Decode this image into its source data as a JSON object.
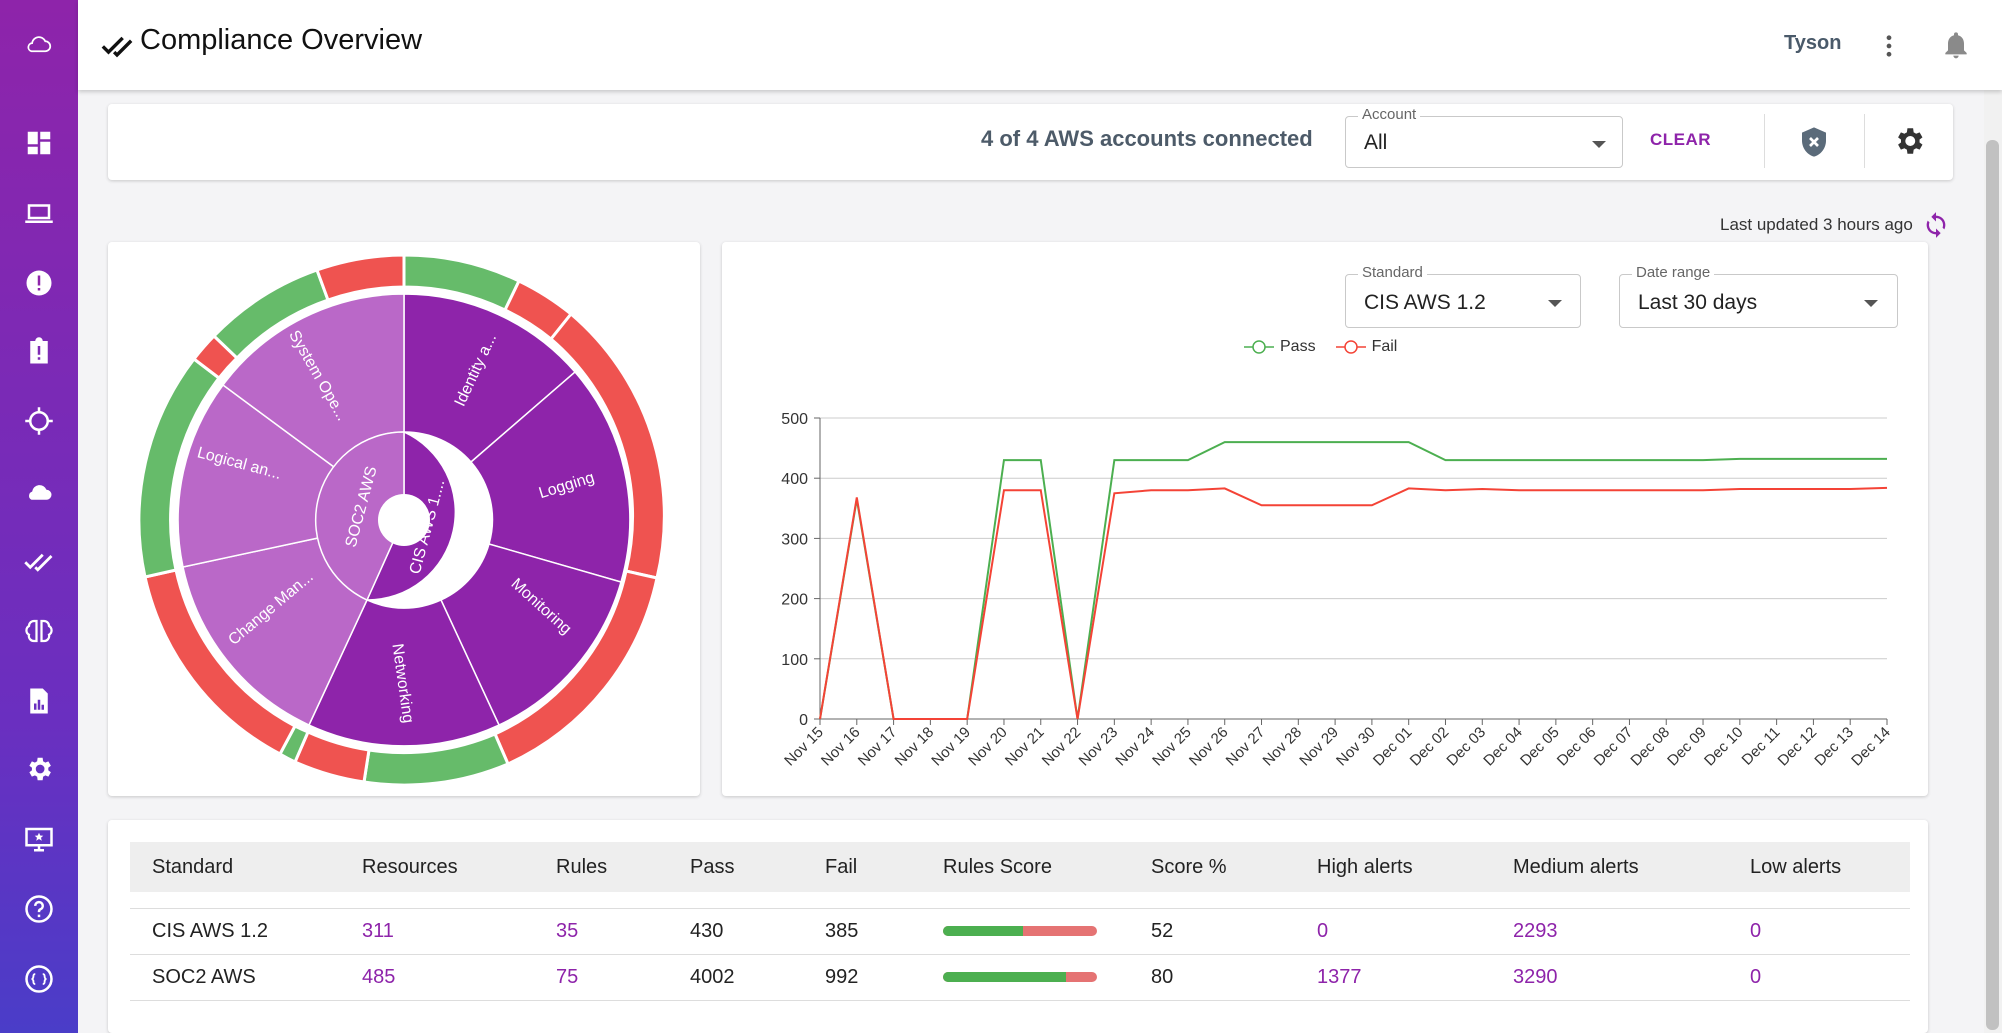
{
  "header": {
    "title": "Compliance Overview",
    "user": "Tyson"
  },
  "sidebar": {
    "icons": [
      "cloud-logo-icon",
      "dashboard-icon",
      "laptop-icon",
      "alert-icon",
      "clipboard-alert-icon",
      "crosshair-icon",
      "cloud-icon",
      "compliance-check-icon",
      "brain-icon",
      "report-icon",
      "settings-icon",
      "monitor-icon",
      "help-icon",
      "api-icon"
    ]
  },
  "accounts": {
    "connected_text": "4 of 4 AWS accounts connected",
    "account_label": "Account",
    "account_value": "All",
    "clear_label": "CLEAR"
  },
  "last_updated": "Last updated 3 hours ago",
  "filters": {
    "standard_label": "Standard",
    "standard_value": "CIS AWS 1.2",
    "range_label": "Date range",
    "range_value": "Last 30 days"
  },
  "sunburst": {
    "inner": [
      "SOC2 AWS",
      "CIS AWS 1...."
    ],
    "segments": [
      "System Ope...",
      "Identity a...",
      "Logging",
      "Monitoring",
      "Networking",
      "Change Man...",
      "Logical an..."
    ]
  },
  "chart_data": {
    "type": "line",
    "x": [
      "Nov 15",
      "Nov 16",
      "Nov 17",
      "Nov 18",
      "Nov 19",
      "Nov 20",
      "Nov 21",
      "Nov 22",
      "Nov 23",
      "Nov 24",
      "Nov 25",
      "Nov 26",
      "Nov 27",
      "Nov 28",
      "Nov 29",
      "Nov 30",
      "Dec 01",
      "Dec 02",
      "Dec 03",
      "Dec 04",
      "Dec 05",
      "Dec 06",
      "Dec 07",
      "Dec 08",
      "Dec 09",
      "Dec 10",
      "Dec 11",
      "Dec 12",
      "Dec 13",
      "Dec 14"
    ],
    "series": [
      {
        "name": "Pass",
        "color": "#4caf50",
        "values": [
          0,
          365,
          0,
          0,
          0,
          430,
          430,
          0,
          430,
          430,
          430,
          460,
          460,
          460,
          460,
          460,
          460,
          430,
          430,
          430,
          430,
          430,
          430,
          430,
          430,
          432,
          432,
          432,
          432,
          432
        ]
      },
      {
        "name": "Fail",
        "color": "#f44336",
        "values": [
          0,
          368,
          0,
          0,
          0,
          380,
          380,
          0,
          375,
          380,
          380,
          383,
          355,
          355,
          355,
          355,
          383,
          380,
          382,
          380,
          380,
          380,
          380,
          380,
          380,
          382,
          382,
          382,
          382,
          384
        ]
      }
    ],
    "yticks": [
      0,
      100,
      200,
      300,
      400,
      500
    ],
    "ylim": [
      0,
      500
    ],
    "grid": true
  },
  "table": {
    "headers": [
      "Standard",
      "Resources",
      "Rules",
      "Pass",
      "Fail",
      "Rules Score",
      "Score %",
      "High alerts",
      "Medium alerts",
      "Low alerts"
    ],
    "rows": [
      {
        "standard": "CIS AWS 1.2",
        "resources": "311",
        "rules": "35",
        "pass": "430",
        "fail": "385",
        "score_fraction": 0.52,
        "score": "52",
        "high": "0",
        "medium": "2293",
        "low": "0"
      },
      {
        "standard": "SOC2 AWS",
        "resources": "485",
        "rules": "75",
        "pass": "4002",
        "fail": "992",
        "score_fraction": 0.8,
        "score": "80",
        "high": "1377",
        "medium": "3290",
        "low": "0"
      }
    ]
  }
}
